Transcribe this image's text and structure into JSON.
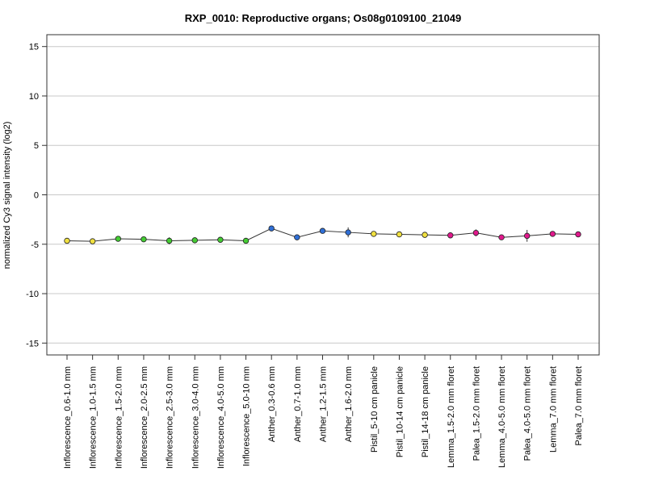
{
  "chart_data": {
    "type": "line",
    "title": "RXP_0010: Reproductive organs; Os08g0109100_21049",
    "xlabel": "",
    "ylabel": "normalized Cy3 signal intensity (log2)",
    "ylim": [
      -16.2,
      16.2
    ],
    "yticks": [
      15,
      10,
      5,
      0,
      -5,
      -10,
      -15
    ],
    "ytick_labels": [
      "15",
      "10",
      "5",
      "0",
      "-5",
      "-10",
      "-15"
    ],
    "grid": true,
    "categories": [
      "Inflorescence_0.6-1.0 mm",
      "Inflorescence_1.0-1.5 mm",
      "Inflorescence_1.5-2.0 mm",
      "Inflorescence_2.0-2.5 mm",
      "Inflorescence_2.5-3.0 mm",
      "Inflorescence_3.0-4.0 mm",
      "Inflorescence_4.0-5.0 mm",
      "Inflorescence_5.0-10 mm",
      "Anther_0.3-0.6 mm",
      "Anther_0.7-1.0 mm",
      "Anther_1.2-1.5 mm",
      "Anther_1.6-2.0 mm",
      "Pistil_5-10 cm panicle",
      "Pistil_10-14 cm panicle",
      "Pistil_14-18 cm panicle",
      "Lemma_1.5-2.0 mm floret",
      "Palea_1.5-2.0 mm floret",
      "Lemma_4.0-5.0 mm floret",
      "Palea_4.0-5.0 mm floret",
      "Lemma_7.0 mm floret",
      "Palea_7.0 mm floret"
    ],
    "series": [
      {
        "values": [
          -4.65,
          -4.7,
          -4.45,
          -4.5,
          -4.65,
          -4.6,
          -4.55,
          -4.65,
          -3.4,
          -4.3,
          -3.65,
          -3.8,
          -3.95,
          -4.0,
          -4.05,
          -4.1,
          -3.85,
          -4.3,
          -4.15,
          -3.95,
          -4.0
        ],
        "errors": [
          0.25,
          0.15,
          0.15,
          0.1,
          0.35,
          0.15,
          0.1,
          0.1,
          0.1,
          0.3,
          0.1,
          0.5,
          0.15,
          0.15,
          0.15,
          0.15,
          0.35,
          0.2,
          0.6,
          0.15,
          0.15
        ],
        "colors": [
          "#f0e040",
          "#f0e040",
          "#44cc33",
          "#44cc33",
          "#44cc33",
          "#44cc33",
          "#44cc33",
          "#44cc33",
          "#2f6fd6",
          "#2f6fd6",
          "#2f6fd6",
          "#2f6fd6",
          "#f0e040",
          "#f0e040",
          "#f0e040",
          "#e0188c",
          "#e0188c",
          "#e0188c",
          "#e0188c",
          "#e0188c",
          "#e0188c"
        ]
      }
    ]
  }
}
